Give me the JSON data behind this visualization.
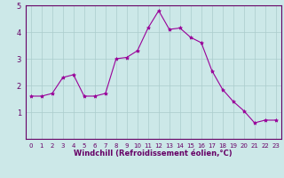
{
  "x": [
    0,
    1,
    2,
    3,
    4,
    5,
    6,
    7,
    8,
    9,
    10,
    11,
    12,
    13,
    14,
    15,
    16,
    17,
    18,
    19,
    20,
    21,
    22,
    23
  ],
  "y": [
    1.6,
    1.6,
    1.7,
    2.3,
    2.4,
    1.6,
    1.6,
    1.7,
    3.0,
    3.05,
    3.3,
    4.15,
    4.8,
    4.1,
    4.15,
    3.8,
    3.6,
    2.55,
    1.85,
    1.4,
    1.05,
    0.6,
    0.7,
    0.7
  ],
  "line_color": "#990099",
  "marker": "*",
  "marker_size": 3,
  "bg_color": "#cce8e8",
  "grid_color": "#aacccc",
  "xlabel": "Windchill (Refroidissement éolien,°C)",
  "xlabel_color": "#660066",
  "tick_color": "#660066",
  "spine_color": "#660066",
  "ylim": [
    0,
    5
  ],
  "xlim": [
    -0.5,
    23.5
  ],
  "yticks": [
    1,
    2,
    3,
    4,
    5
  ],
  "xticks": [
    0,
    1,
    2,
    3,
    4,
    5,
    6,
    7,
    8,
    9,
    10,
    11,
    12,
    13,
    14,
    15,
    16,
    17,
    18,
    19,
    20,
    21,
    22,
    23
  ]
}
